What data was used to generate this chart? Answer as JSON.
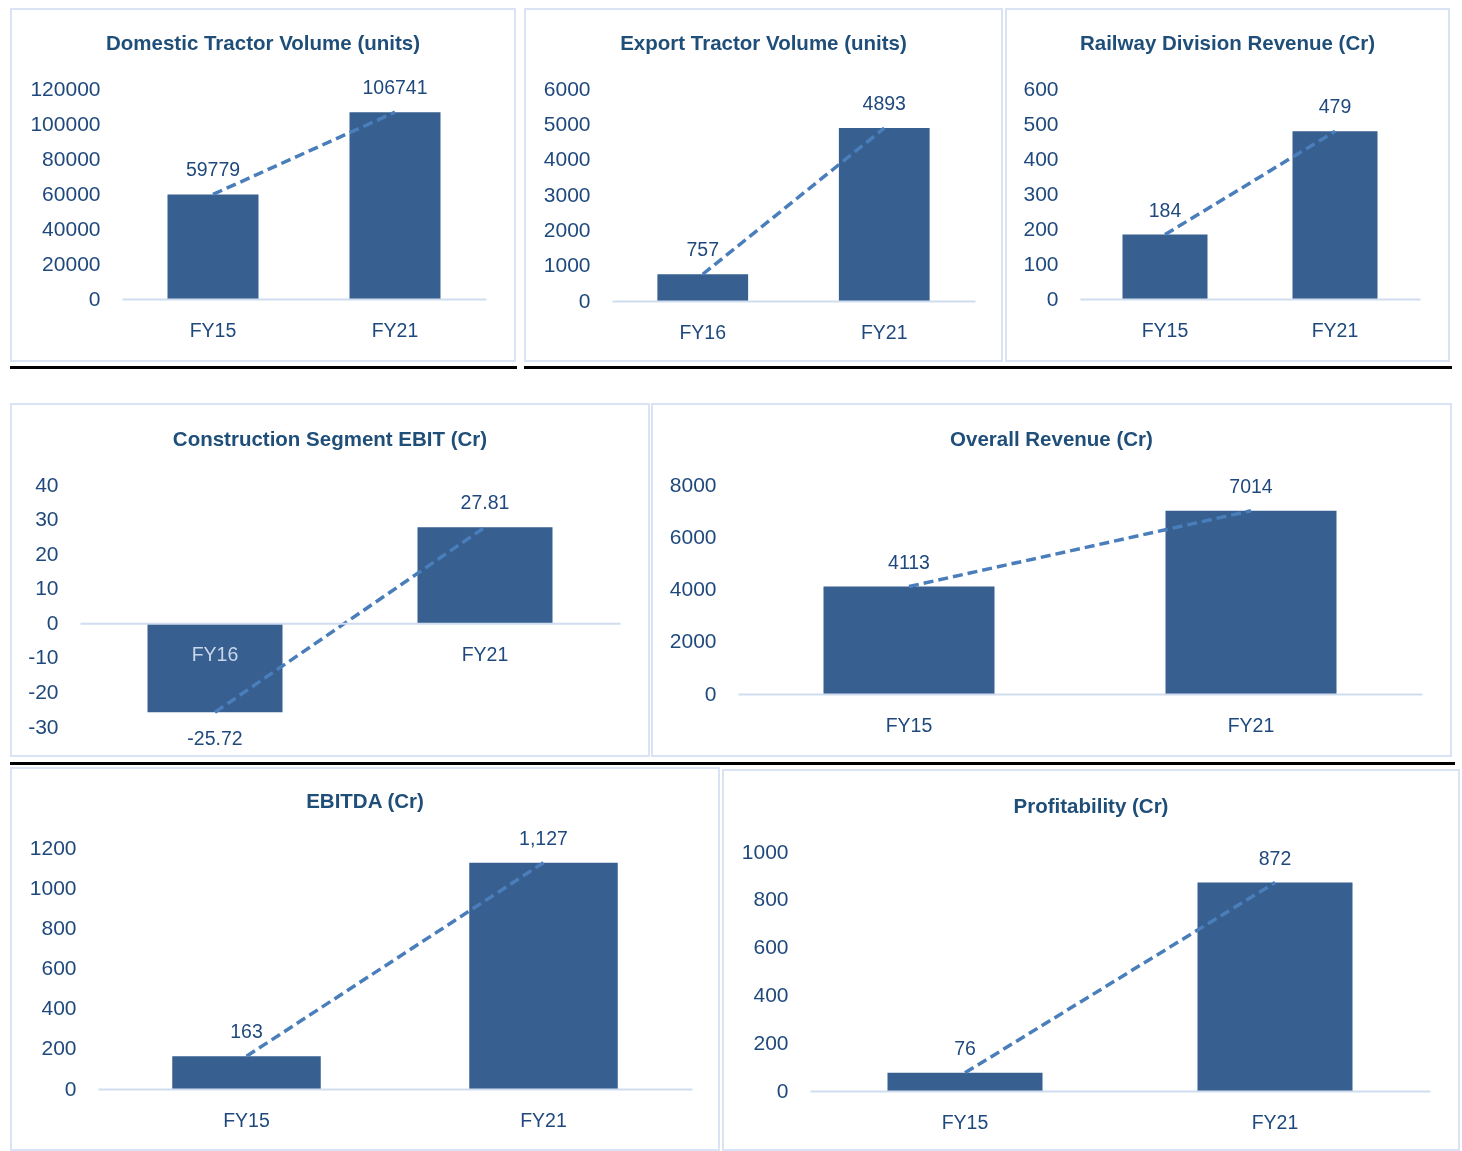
{
  "chart_data": [
    {
      "type": "bar",
      "title": "Domestic Tractor Volume (units)",
      "categories": [
        "FY15",
        "FY21"
      ],
      "series": [
        {
          "values": [
            59779,
            106741
          ],
          "color": "#375f8f",
          "value_labels": [
            "59779",
            "106741"
          ]
        },
        {
          "type": "line",
          "values": [
            59779,
            106741
          ],
          "color": "#4a7ebb"
        }
      ],
      "ylim": [
        0,
        120000
      ],
      "yticks": [
        0,
        20000,
        40000,
        60000,
        80000,
        100000,
        120000
      ],
      "line_style": "dashed"
    },
    {
      "type": "bar",
      "title": "Export Tractor Volume (units)",
      "categories": [
        "FY16",
        "FY21"
      ],
      "series": [
        {
          "values": [
            757,
            4893
          ],
          "color": "#375f8f",
          "value_labels": [
            "757",
            "4893"
          ]
        },
        {
          "type": "line",
          "values": [
            757,
            4893
          ],
          "color": "#4a7ebb"
        }
      ],
      "ylim": [
        0,
        6000
      ],
      "yticks": [
        0,
        1000,
        2000,
        3000,
        4000,
        5000,
        6000
      ],
      "line_style": "dashed"
    },
    {
      "type": "bar",
      "title": "Railway Division Revenue (Cr)",
      "categories": [
        "FY15",
        "FY21"
      ],
      "series": [
        {
          "values": [
            184,
            479
          ],
          "color": "#375f8f",
          "value_labels": [
            "184",
            "479"
          ]
        },
        {
          "type": "line",
          "values": [
            184,
            479
          ],
          "color": "#4a7ebb"
        }
      ],
      "ylim": [
        0,
        600
      ],
      "yticks": [
        0,
        100,
        200,
        300,
        400,
        500,
        600
      ],
      "line_style": "dashed"
    },
    {
      "type": "bar",
      "title": "Construction Segment EBIT (Cr)",
      "categories": [
        "FY16",
        "FY21"
      ],
      "series": [
        {
          "values": [
            -25.72,
            27.81
          ],
          "color": "#375f8f",
          "value_labels": [
            "-25.72",
            "27.81"
          ]
        },
        {
          "type": "line",
          "values": [
            -25.72,
            27.81
          ],
          "color": "#4a7ebb"
        }
      ],
      "ylim": [
        -30,
        40
      ],
      "yticks": [
        -30,
        -20,
        -10,
        0,
        10,
        20,
        30,
        40
      ],
      "line_style": "dashed"
    },
    {
      "type": "bar",
      "title": "Overall Revenue (Cr)",
      "categories": [
        "FY15",
        "FY21"
      ],
      "series": [
        {
          "values": [
            4113,
            7014
          ],
          "color": "#375f8f",
          "value_labels": [
            "4113",
            "7014"
          ]
        },
        {
          "type": "line",
          "values": [
            4113,
            7014
          ],
          "color": "#4a7ebb"
        }
      ],
      "ylim": [
        0,
        8000
      ],
      "yticks": [
        0,
        2000,
        4000,
        6000,
        8000
      ],
      "line_style": "dashed"
    },
    {
      "type": "bar",
      "title": "EBITDA (Cr)",
      "categories": [
        "FY15",
        "FY21"
      ],
      "series": [
        {
          "values": [
            163,
            1127
          ],
          "color": "#375f8f",
          "value_labels": [
            "163",
            "1,127"
          ]
        },
        {
          "type": "line",
          "values": [
            163,
            1127
          ],
          "color": "#4a7ebb"
        }
      ],
      "ylim": [
        0,
        1200
      ],
      "yticks": [
        0,
        200,
        400,
        600,
        800,
        1000,
        1200
      ],
      "line_style": "dashed"
    },
    {
      "type": "bar",
      "title": "Profitability (Cr)",
      "categories": [
        "FY15",
        "FY21"
      ],
      "series": [
        {
          "values": [
            76,
            872
          ],
          "color": "#375f8f",
          "value_labels": [
            "76",
            "872"
          ]
        },
        {
          "type": "line",
          "values": [
            76,
            872
          ],
          "color": "#4a7ebb"
        }
      ],
      "ylim": [
        0,
        1000
      ],
      "yticks": [
        0,
        200,
        400,
        600,
        800,
        1000
      ],
      "line_style": "dashed"
    }
  ]
}
